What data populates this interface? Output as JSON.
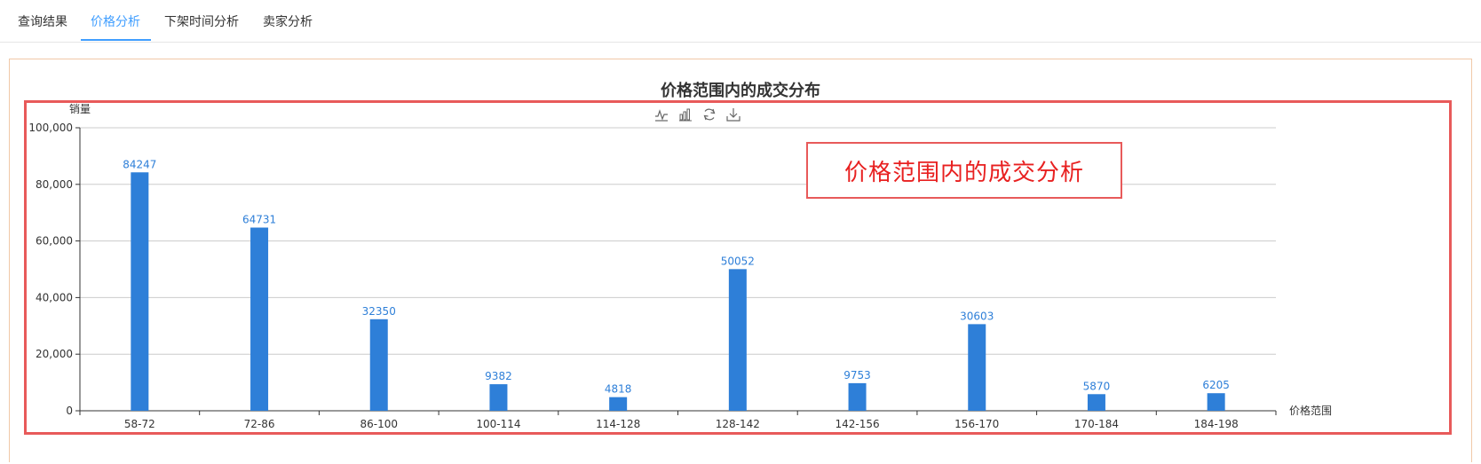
{
  "tabs": [
    {
      "label": "查询结果",
      "active": false
    },
    {
      "label": "价格分析",
      "active": true
    },
    {
      "label": "下架时间分析",
      "active": false
    },
    {
      "label": "卖家分析",
      "active": false
    }
  ],
  "annotation": {
    "text": "价格范围内的成交分析"
  },
  "toolbox": [
    "line-chart-icon",
    "bar-chart-icon",
    "restore-icon",
    "download-icon"
  ],
  "colors": {
    "bar": "#2e7fd8",
    "accent": "#409eff",
    "annotation": "#e85a5a"
  },
  "chart_data": {
    "type": "bar",
    "title": "价格范围内的成交分布",
    "xlabel": "价格范围",
    "ylabel": "销量",
    "categories": [
      "58-72",
      "72-86",
      "86-100",
      "100-114",
      "114-128",
      "128-142",
      "142-156",
      "156-170",
      "170-184",
      "184-198"
    ],
    "values": [
      84247,
      64731,
      32350,
      9382,
      4818,
      50052,
      9753,
      30603,
      5870,
      6205
    ],
    "ylim": [
      0,
      100000
    ],
    "yticks": [
      "0",
      "20,000",
      "40,000",
      "60,000",
      "80,000",
      "100,000"
    ],
    "grid": true,
    "data_labels": true
  }
}
